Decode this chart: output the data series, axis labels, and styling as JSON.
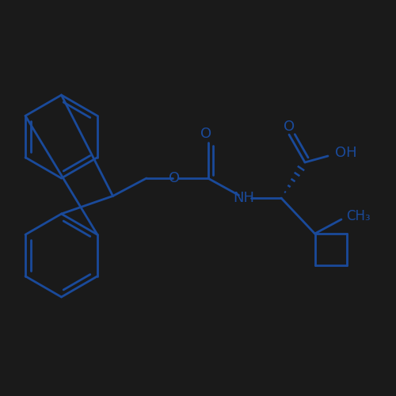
{
  "background_color": "#1a1a1a",
  "line_color": "#1a4a9a",
  "line_width": 2.0,
  "font_size": 13,
  "label_color": "#1a4a9a",
  "figsize": [
    5.0,
    5.0
  ],
  "dpi": 100,
  "xlim": [
    0,
    10
  ],
  "ylim": [
    0,
    10
  ]
}
